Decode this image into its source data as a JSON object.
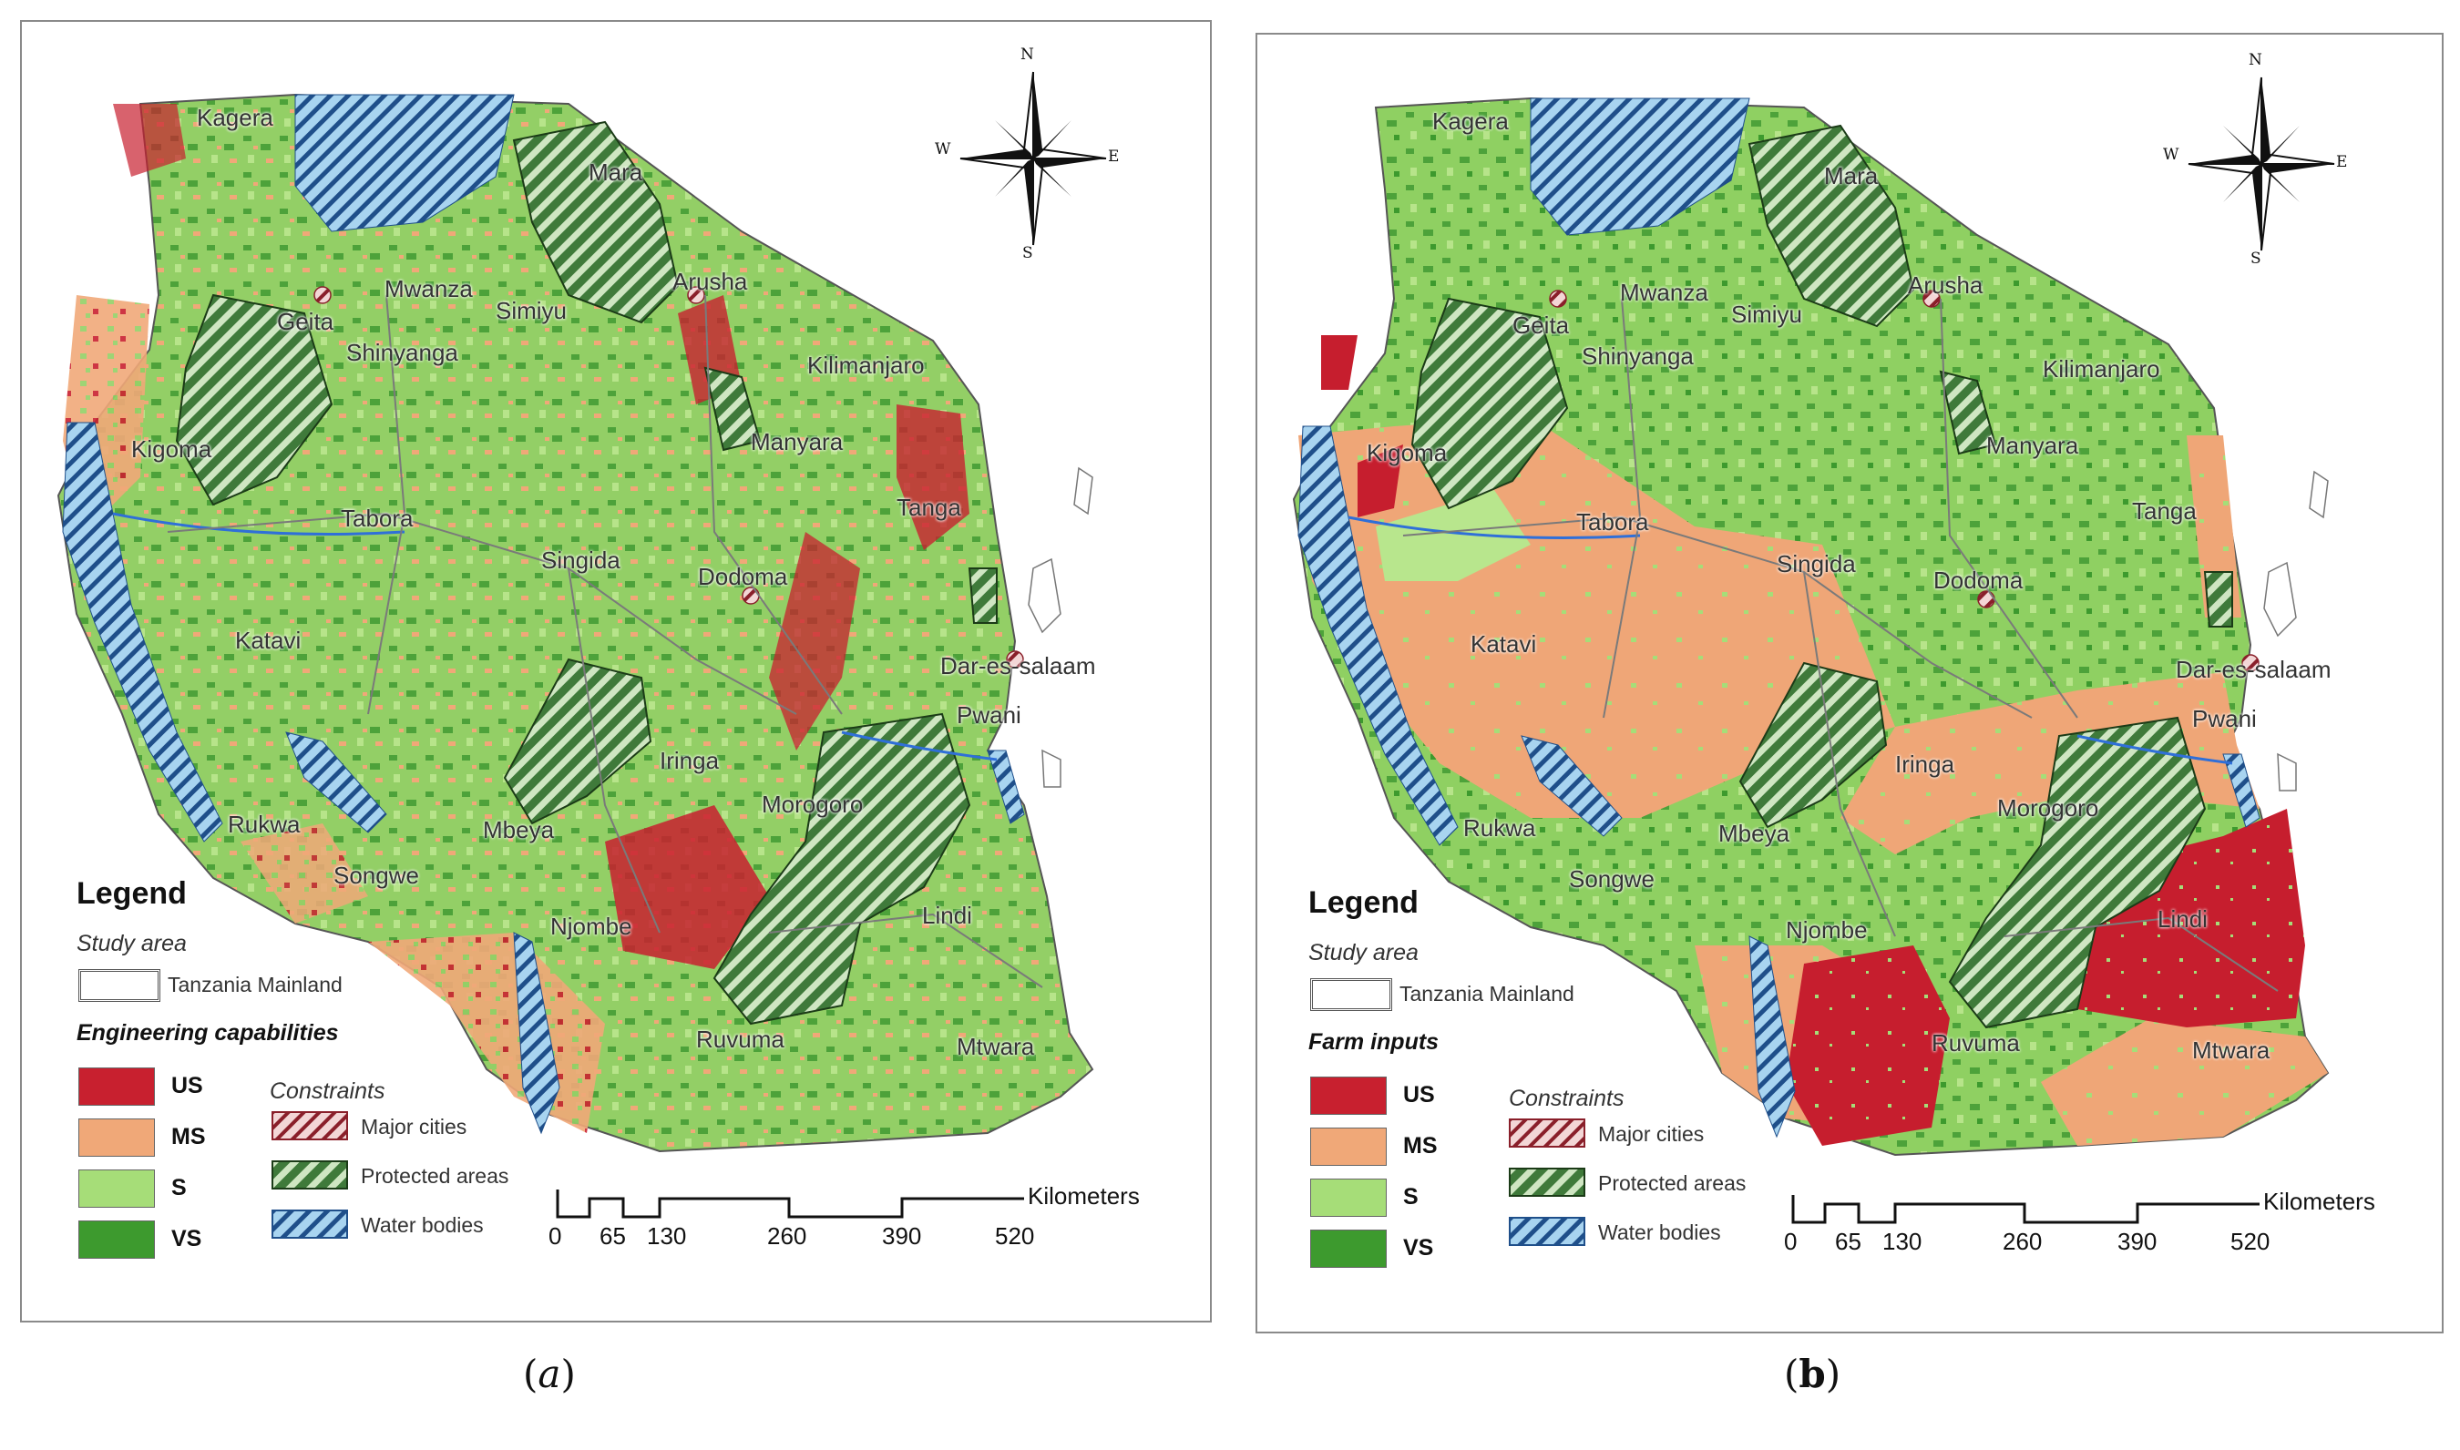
{
  "panels": [
    {
      "caption_letter": "a",
      "places": [
        "Kagera",
        "Mara",
        "Mwanza",
        "Simiyu",
        "Arusha",
        "Geita",
        "Shinyanga",
        "Kilimanjaro",
        "Kigoma",
        "Manyara",
        "Tabora",
        "Tanga",
        "Singida",
        "Dodoma",
        "Katavi",
        "Dar-es-salaam",
        "Pwani",
        "Iringa",
        "Rukwa",
        "Mbeya",
        "Morogoro",
        "Songwe",
        "Njombe",
        "Lindi",
        "Ruvuma",
        "Mtwara"
      ],
      "legend": {
        "title": "Legend",
        "study_area_heading": "Study area",
        "study_area_label": "Tanzania Mainland",
        "classes_heading": "Engineering capabilities",
        "classes": [
          "US",
          "MS",
          "S",
          "VS"
        ],
        "constraints_heading": "Constraints",
        "constraints": [
          "Major cities",
          "Protected areas",
          "Water bodies"
        ]
      },
      "scale": {
        "ticks": [
          "0",
          "65",
          "130",
          "260",
          "390",
          "520"
        ],
        "unit": "Kilometers"
      },
      "compass": [
        "N",
        "E",
        "S",
        "W"
      ]
    },
    {
      "caption_letter": "b",
      "places": [
        "Kagera",
        "Mara",
        "Mwanza",
        "Simiyu",
        "Arusha",
        "Geita",
        "Shinyanga",
        "Kilimanjaro",
        "Kigoma",
        "Manyara",
        "Tabora",
        "Tanga",
        "Singida",
        "Dodoma",
        "Katavi",
        "Dar-es-salaam",
        "Pwani",
        "Iringa",
        "Rukwa",
        "Mbeya",
        "Morogoro",
        "Songwe",
        "Njombe",
        "Lindi",
        "Ruvuma",
        "Mtwara"
      ],
      "legend": {
        "title": "Legend",
        "study_area_heading": "Study area",
        "study_area_label": "Tanzania Mainland",
        "classes_heading": "Farm inputs",
        "classes": [
          "US",
          "MS",
          "S",
          "VS"
        ],
        "constraints_heading": "Constraints",
        "constraints": [
          "Major cities",
          "Protected areas",
          "Water bodies"
        ]
      },
      "scale": {
        "ticks": [
          "0",
          "65",
          "130",
          "260",
          "390",
          "520"
        ],
        "unit": "Kilometers"
      },
      "compass": [
        "N",
        "E",
        "S",
        "W"
      ]
    }
  ],
  "colors": {
    "US": "#c8202f",
    "MS": "#f0a878",
    "S": "#a6dd78",
    "VS": "#3d9a2e",
    "protected": "#3f7a3a",
    "water": "#a8d4f0",
    "river": "#2f6fd8",
    "boundary": "#7a7a7a"
  }
}
